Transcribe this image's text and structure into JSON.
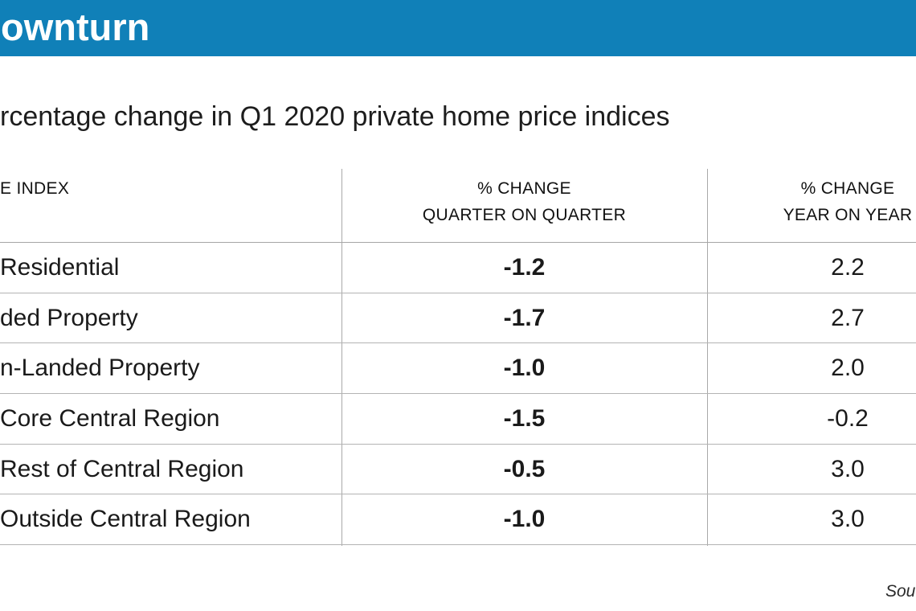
{
  "banner": {
    "title": "ownturn",
    "bg_color": "#1080b8"
  },
  "headline": "rcentage change in Q1 2020 private home price indices",
  "table": {
    "header": {
      "index": "E INDEX",
      "qoq_line1": "% CHANGE",
      "qoq_line2": "QUARTER ON QUARTER",
      "yoy_line1": "% CHANGE",
      "yoy_line2": "YEAR ON YEAR"
    },
    "rows": [
      {
        "label": "Residential",
        "qoq": "-1.2",
        "yoy": "2.2"
      },
      {
        "label": "ded Property",
        "qoq": "-1.7",
        "yoy": "2.7"
      },
      {
        "label": "n-Landed Property",
        "qoq": "-1.0",
        "yoy": "2.0"
      },
      {
        "label": "Core Central Region",
        "qoq": "-1.5",
        "yoy": "-0.2"
      },
      {
        "label": "Rest of Central Region",
        "qoq": "-0.5",
        "yoy": "3.0"
      },
      {
        "label": "Outside Central Region",
        "qoq": "-1.0",
        "yoy": "3.0"
      }
    ]
  },
  "footer": {
    "source": "Sou"
  },
  "chart_data": {
    "type": "table",
    "title": "rcentage change in Q1 2020 private home price indices",
    "columns": [
      "E INDEX",
      "% CHANGE QUARTER ON QUARTER",
      "% CHANGE YEAR ON YEAR"
    ],
    "rows": [
      {
        "index": "Residential",
        "qoq_change_pct": -1.2,
        "yoy_change_pct": 2.2
      },
      {
        "index": "ded Property",
        "qoq_change_pct": -1.7,
        "yoy_change_pct": 2.7
      },
      {
        "index": "n-Landed Property",
        "qoq_change_pct": -1.0,
        "yoy_change_pct": 2.0
      },
      {
        "index": "Core Central Region",
        "qoq_change_pct": -1.5,
        "yoy_change_pct": -0.2
      },
      {
        "index": "Rest of Central Region",
        "qoq_change_pct": -0.5,
        "yoy_change_pct": 3.0
      },
      {
        "index": "Outside Central Region",
        "qoq_change_pct": -1.0,
        "yoy_change_pct": 3.0
      }
    ],
    "accent_color": "#1080b8",
    "notes": "Quarter-on-quarter values shown in bold; grid lines on"
  }
}
